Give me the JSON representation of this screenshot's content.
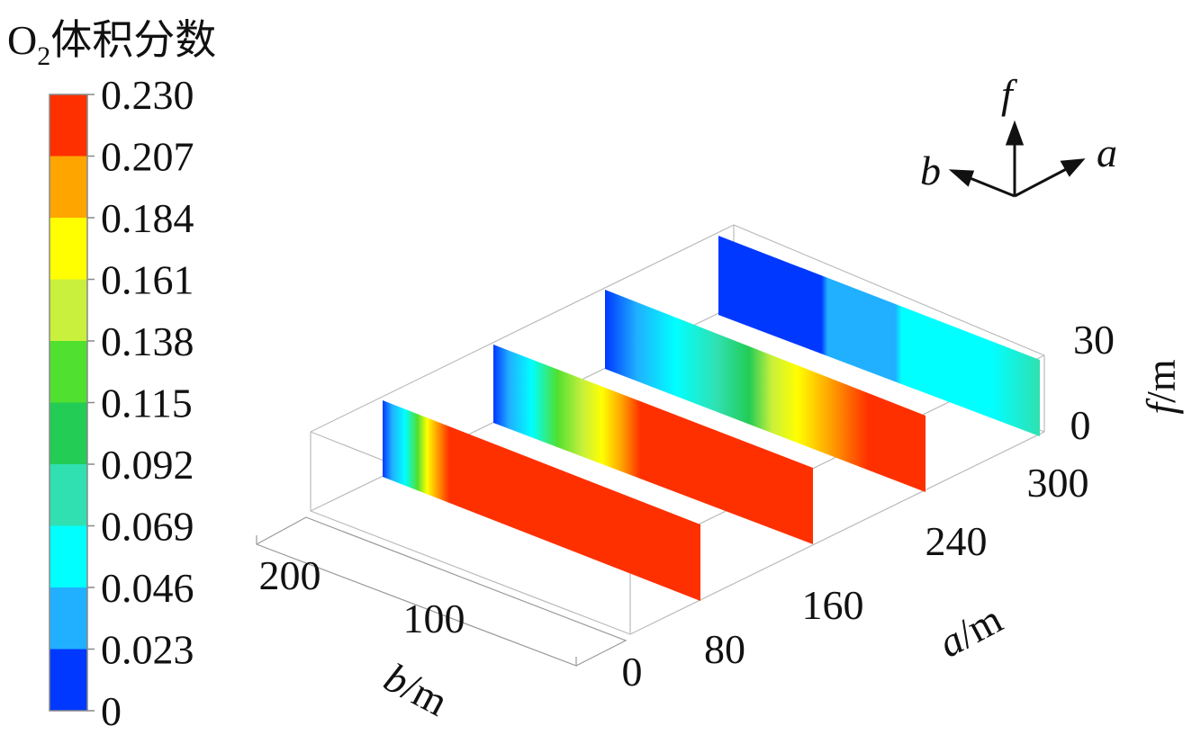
{
  "colorbar": {
    "title": {
      "main": "O",
      "sub": "2",
      "rest": "体积分数"
    },
    "ticks": [
      "0.230",
      "0.207",
      "0.184",
      "0.161",
      "0.138",
      "0.115",
      "0.092",
      "0.069",
      "0.046",
      "0.023",
      "0"
    ],
    "colors": [
      "#ff3000",
      "#ffa500",
      "#ffff00",
      "#c8f03c",
      "#50e030",
      "#22cc55",
      "#30e0b0",
      "#00ffff",
      "#20b0ff",
      "#0038ff"
    ]
  },
  "axes": {
    "b": {
      "var": "b",
      "unit": "/m",
      "ticks": [
        "0",
        "100",
        "200"
      ]
    },
    "a": {
      "var": "a",
      "unit": "/m",
      "ticks": [
        "80",
        "160",
        "240",
        "300"
      ]
    },
    "f": {
      "var": "f",
      "unit": "/m",
      "ticks": [
        "0",
        "30"
      ]
    }
  },
  "orientation": {
    "up": "f",
    "left": "b",
    "right": "a"
  }
}
